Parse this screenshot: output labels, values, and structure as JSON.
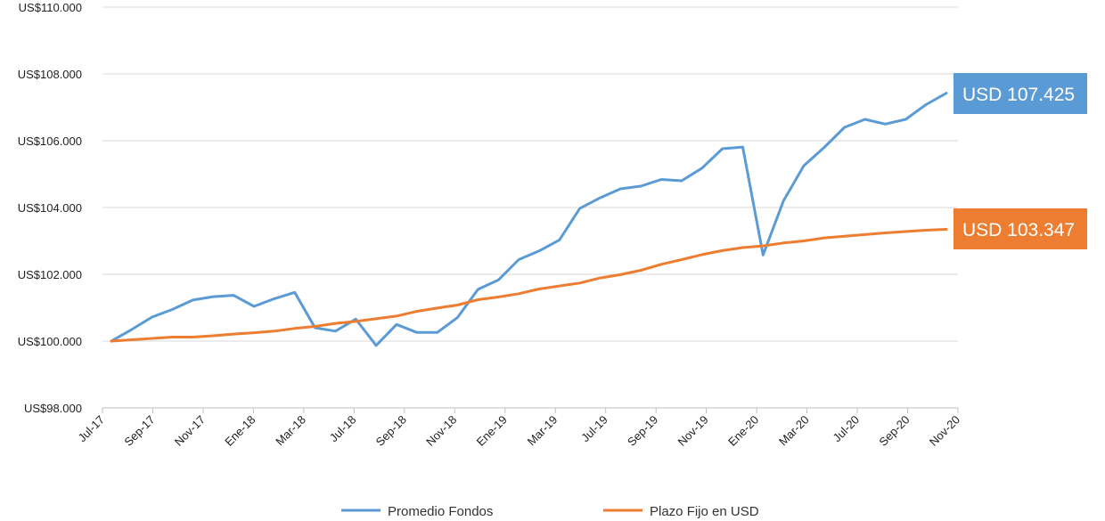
{
  "chart_data": {
    "type": "line",
    "title": "",
    "xlabel": "",
    "ylabel": "",
    "ylim": [
      98000,
      110000
    ],
    "y_ticks": [
      "US$98.000",
      "US$100.000",
      "US$102.000",
      "US$104.000",
      "US$106.000",
      "US$108.000",
      "US$110.000"
    ],
    "x_tick_labels": [
      "Jul-17",
      "Sep-17",
      "Nov-17",
      "Ene-18",
      "Mar-18",
      "Jul-18",
      "Sep-18",
      "Nov-18",
      "Ene-19",
      "Mar-19",
      "Jul-19",
      "Sep-19",
      "Nov-19",
      "Ene-20",
      "Mar-20",
      "Jul-20",
      "Sep-20",
      "Nov-20"
    ],
    "grid": true,
    "legend_position": "bottom",
    "series": [
      {
        "name": "Promedio Fondos",
        "color": "#5B9BD5",
        "values": [
          100000,
          100350,
          100720,
          100950,
          101230,
          101330,
          101370,
          101040,
          101270,
          101460,
          100400,
          100300,
          100660,
          99870,
          100500,
          100260,
          100260,
          100710,
          101550,
          101830,
          102440,
          102700,
          103030,
          103970,
          104290,
          104560,
          104640,
          104840,
          104800,
          105180,
          105760,
          105810,
          102580,
          104200,
          105250,
          105800,
          106400,
          106640,
          106500,
          106640,
          107080,
          107425
        ]
      },
      {
        "name": "Plazo Fijo en USD",
        "color": "#ED7D31",
        "values": [
          100000,
          100040,
          100080,
          100120,
          100120,
          100160,
          100210,
          100250,
          100300,
          100380,
          100440,
          100530,
          100590,
          100670,
          100750,
          100890,
          100990,
          101080,
          101240,
          101320,
          101420,
          101560,
          101650,
          101740,
          101890,
          101990,
          102120,
          102300,
          102440,
          102590,
          102710,
          102800,
          102850,
          102940,
          103000,
          103090,
          103140,
          103190,
          103240,
          103280,
          103320,
          103347
        ]
      }
    ],
    "callouts": [
      {
        "text": "USD 107.425",
        "series": "Promedio Fondos",
        "color": "#5B9BD5"
      },
      {
        "text": "USD 103.347",
        "series": "Plazo Fijo en USD",
        "color": "#ED7D31"
      }
    ]
  }
}
